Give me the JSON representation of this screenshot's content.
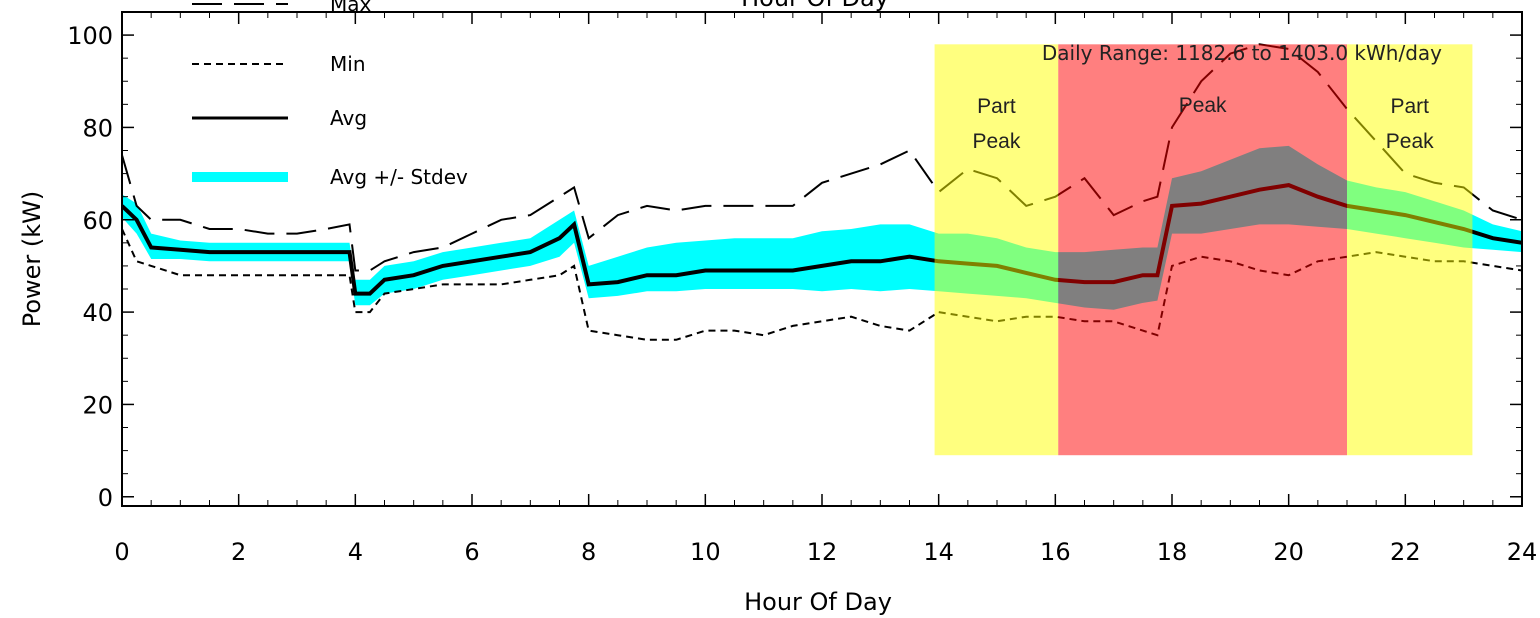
{
  "chart_data": {
    "type": "line",
    "title": "Hour Of Day",
    "xlabel": "Hour Of Day",
    "ylabel": "Power (kW)",
    "xlim": [
      0,
      24
    ],
    "ylim": [
      -2,
      105
    ],
    "x_ticks": [
      0,
      2,
      4,
      6,
      8,
      10,
      12,
      14,
      16,
      18,
      20,
      22,
      24
    ],
    "y_ticks": [
      0,
      20,
      40,
      60,
      80,
      100
    ],
    "annotation": "Daily Range: 1182.6 to 1403.0 kWh/day",
    "legend": [
      {
        "label": "Max",
        "style": "long-dash",
        "color": "#000000"
      },
      {
        "label": "Min",
        "style": "short-dash",
        "color": "#000000"
      },
      {
        "label": "Avg",
        "style": "solid",
        "color": "#000000"
      },
      {
        "label": "Avg +/- Stdev",
        "style": "band",
        "color": "#00ffff"
      }
    ],
    "periods": [
      {
        "label": "Part\nPeak",
        "x_start": 13.93,
        "x_end": 16.05,
        "y_bottom": 9,
        "y_top": 98,
        "color": "#ffff00"
      },
      {
        "label": "Peak",
        "x_start": 16.05,
        "x_end": 21.0,
        "y_bottom": 9,
        "y_top": 98,
        "color": "#ff0000"
      },
      {
        "label": "Part\nPeak",
        "x_start": 21.0,
        "x_end": 23.15,
        "y_bottom": 9,
        "y_top": 98,
        "color": "#ffff00"
      }
    ],
    "x": [
      0,
      0.25,
      0.5,
      1,
      1.5,
      2,
      2.5,
      3,
      3.5,
      3.9,
      4.0,
      4.25,
      4.5,
      5,
      5.5,
      6,
      6.5,
      7,
      7.5,
      7.75,
      8.0,
      8.5,
      9,
      9.5,
      10,
      10.5,
      11,
      11.5,
      12,
      12.5,
      13,
      13.5,
      14,
      14.5,
      15,
      15.5,
      16,
      16.5,
      17,
      17.5,
      17.75,
      18.0,
      18.5,
      19,
      19.5,
      20,
      20.5,
      21,
      21.5,
      22,
      22.5,
      23,
      23.5,
      24
    ],
    "series": [
      {
        "name": "Max",
        "values": [
          74,
          63,
          60,
          60,
          58,
          58,
          57,
          57,
          58,
          59,
          49,
          49,
          51,
          53,
          54,
          57,
          60,
          61,
          65,
          67,
          56,
          61,
          63,
          62,
          63,
          63,
          63,
          63,
          68,
          70,
          72,
          75,
          66,
          71,
          69,
          63,
          65,
          69,
          61,
          64,
          65,
          80,
          90,
          96,
          98,
          97,
          92,
          84,
          77,
          70,
          68,
          67,
          62,
          60
        ]
      },
      {
        "name": "Min",
        "values": [
          58,
          51,
          50,
          48,
          48,
          48,
          48,
          48,
          48,
          48,
          40,
          40,
          44,
          45,
          46,
          46,
          46,
          47,
          48,
          50,
          36,
          35,
          34,
          34,
          36,
          36,
          35,
          37,
          38,
          39,
          37,
          36,
          40,
          39,
          38,
          39,
          39,
          38,
          38,
          36,
          35,
          50,
          52,
          51,
          49,
          48,
          51,
          52,
          53,
          52,
          51,
          51,
          50,
          49
        ]
      },
      {
        "name": "Avg",
        "values": [
          63,
          60,
          54,
          53.5,
          53,
          53,
          53,
          53,
          53,
          53,
          44,
          44,
          47,
          48,
          50,
          51,
          52,
          53,
          56,
          59,
          46,
          46.5,
          48,
          48,
          49,
          49,
          49,
          49,
          50,
          51,
          51,
          52,
          51,
          50.5,
          50,
          48.5,
          47,
          46.5,
          46.5,
          48,
          48,
          63,
          63.5,
          65,
          66.5,
          67.5,
          65,
          63,
          62,
          61,
          59.5,
          58,
          56,
          55
        ]
      },
      {
        "name": "Avg +/- Stdev",
        "upper": [
          65.5,
          63.5,
          57,
          55.5,
          55,
          55,
          55,
          55,
          55,
          55,
          47,
          47,
          50,
          51,
          53,
          54,
          55,
          56,
          60,
          62,
          50,
          52,
          54,
          55,
          55.5,
          56,
          56,
          56,
          57.5,
          58,
          59,
          59,
          57,
          57,
          56,
          54,
          53,
          53,
          53.5,
          54,
          54,
          69,
          70.5,
          73,
          75.5,
          76,
          72,
          68.5,
          67,
          66,
          64,
          62,
          59,
          57.5
        ],
        "lower": [
          60.5,
          57,
          51.5,
          51.5,
          51,
          51,
          51,
          51,
          51,
          51,
          41.5,
          41.5,
          44,
          45,
          47,
          48,
          49,
          50,
          52,
          55,
          43,
          43.5,
          44.5,
          44.5,
          45,
          45,
          45,
          45,
          44.5,
          45,
          44.5,
          45,
          44.5,
          44,
          43.5,
          43,
          42,
          41,
          40.5,
          42,
          42.5,
          57,
          57,
          58,
          59,
          59,
          58.5,
          58,
          57,
          56,
          55,
          54,
          53.5,
          53
        ]
      }
    ]
  }
}
